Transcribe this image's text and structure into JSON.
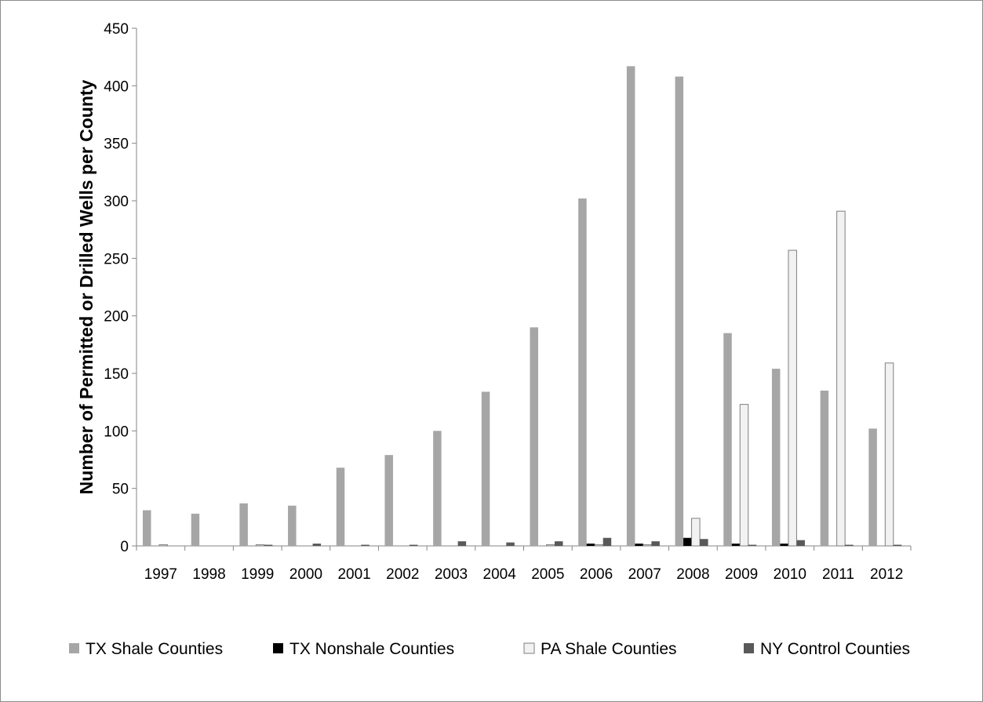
{
  "chart_data": {
    "type": "bar",
    "title": "",
    "xlabel": "",
    "ylabel": "Number of Permitted or Drilled Wells per County",
    "ylim": [
      0,
      450
    ],
    "yticks": [
      0,
      50,
      100,
      150,
      200,
      250,
      300,
      350,
      400,
      450
    ],
    "grid": false,
    "legend_position": "bottom",
    "categories": [
      "1997",
      "1998",
      "1999",
      "2000",
      "2001",
      "2002",
      "2003",
      "2004",
      "2005",
      "2006",
      "2007",
      "2008",
      "2009",
      "2010",
      "2011",
      "2012"
    ],
    "series": [
      {
        "name": "TX Shale Counties",
        "color": "#a6a6a6",
        "values": [
          31,
          28,
          37,
          35,
          68,
          79,
          100,
          134,
          190,
          302,
          417,
          408,
          185,
          154,
          135,
          102
        ]
      },
      {
        "name": "TX Nonshale Counties",
        "color": "#000000",
        "values": [
          0,
          0,
          0,
          0,
          0,
          0,
          0,
          0,
          0,
          2,
          2,
          7,
          2,
          2,
          0,
          0
        ]
      },
      {
        "name": "PA Shale Counties",
        "color": "#f2f2f2",
        "values": [
          1,
          0,
          1,
          0,
          0,
          0,
          0,
          0,
          1,
          1,
          1,
          24,
          123,
          257,
          291,
          159
        ]
      },
      {
        "name": "NY Control Counties",
        "color": "#595959",
        "values": [
          0,
          0,
          1,
          2,
          1,
          1,
          4,
          3,
          4,
          7,
          4,
          6,
          1,
          5,
          1,
          1
        ]
      }
    ]
  }
}
